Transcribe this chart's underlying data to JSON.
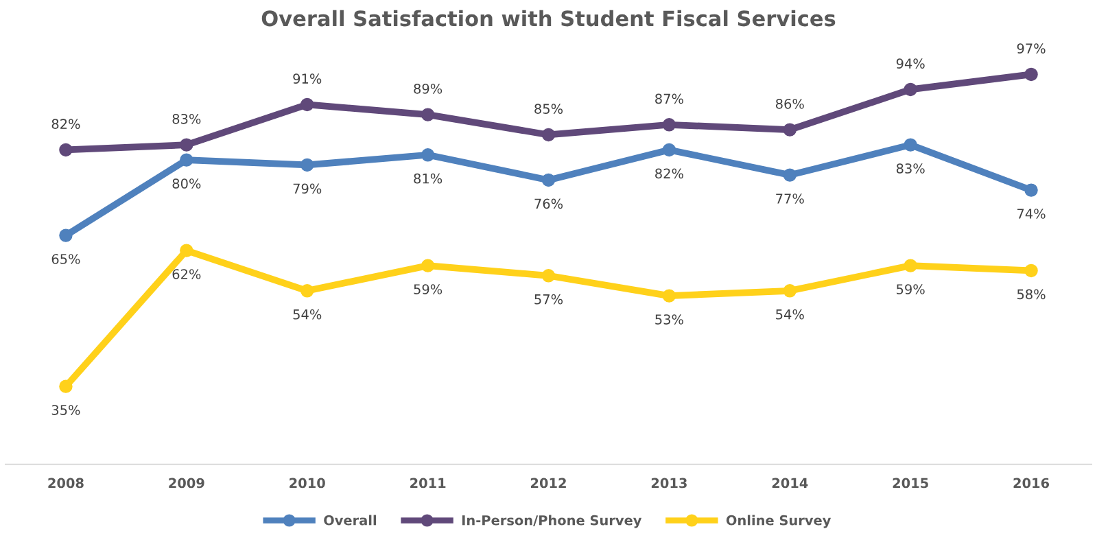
{
  "chart_data": {
    "type": "line",
    "title": "Overall Satisfaction with Student Fiscal Services",
    "categories": [
      "2008",
      "2009",
      "2010",
      "2011",
      "2012",
      "2013",
      "2014",
      "2015",
      "2016"
    ],
    "series": [
      {
        "name": "Overall",
        "color": "#4f81bd",
        "values": [
          65,
          80,
          79,
          81,
          76,
          82,
          77,
          83,
          74
        ],
        "value_labels": [
          "65%",
          "80%",
          "79%",
          "81%",
          "76%",
          "82%",
          "77%",
          "83%",
          "74%"
        ]
      },
      {
        "name": "In-Person/Phone Survey",
        "color": "#60497a",
        "values": [
          82,
          83,
          91,
          89,
          85,
          87,
          86,
          94,
          97
        ],
        "value_labels": [
          "82%",
          "83%",
          "91%",
          "89%",
          "85%",
          "87%",
          "86%",
          "94%",
          "97%"
        ]
      },
      {
        "name": "Online Survey",
        "color": "#ffd11a",
        "values": [
          35,
          62,
          54,
          59,
          57,
          53,
          54,
          59,
          58
        ],
        "value_labels": [
          "35%",
          "62%",
          "54%",
          "59%",
          "57%",
          "53%",
          "54%",
          "59%",
          "58%"
        ]
      }
    ],
    "tick_labels": "x",
    "legend": "bottom",
    "marker": "circle",
    "line_style": "solid",
    "grid": false
  }
}
